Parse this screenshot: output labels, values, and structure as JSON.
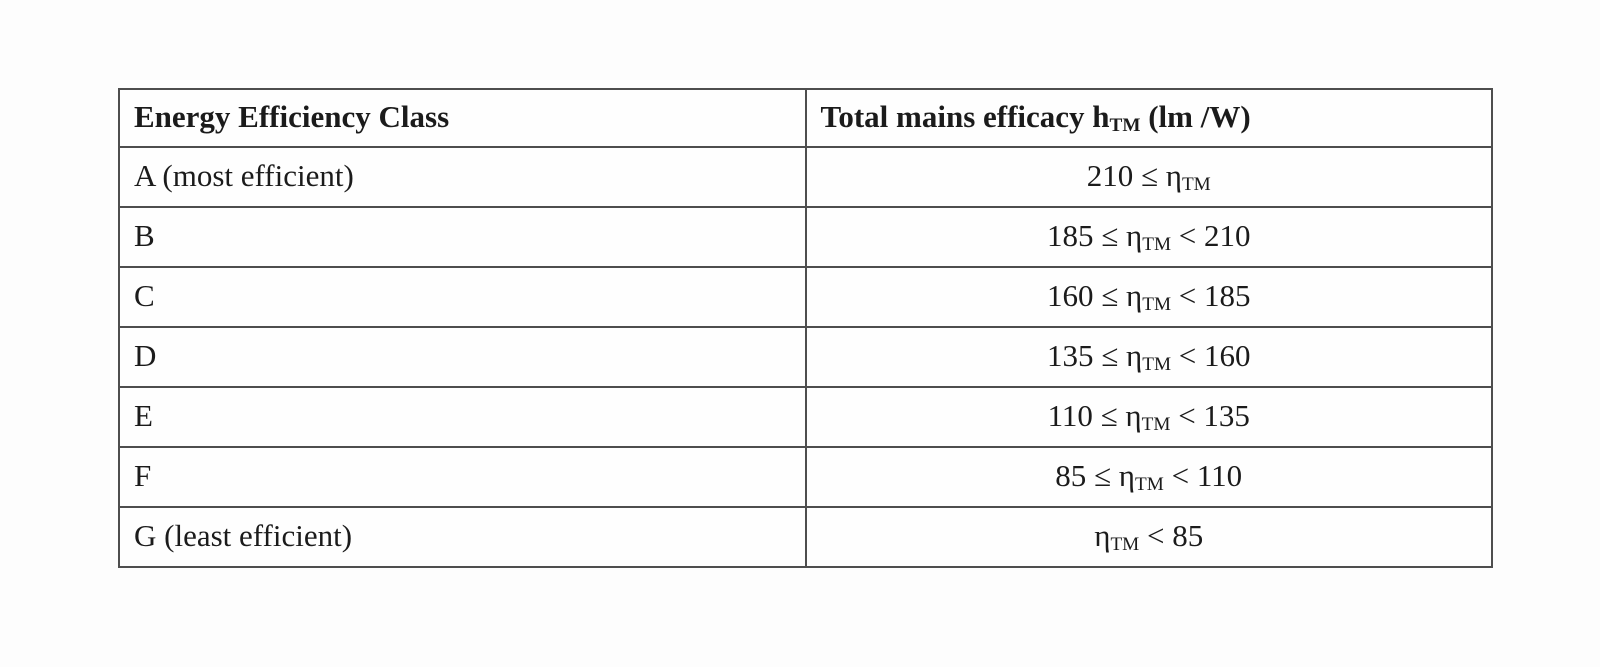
{
  "page": {
    "colors": {
      "background": "#fdfdfd",
      "table_background": "#fefefe",
      "border": "#4e4e4e",
      "text": "#1b1b1b"
    }
  },
  "table": {
    "header": {
      "col1": "Energy Efficiency Class",
      "col2_pre": "Total mains efficacy h",
      "col2_sub": "TM",
      "col2_post": " (lm /W)"
    },
    "rows": [
      {
        "label": "A (most efficient)",
        "pre": "210 ≤ η",
        "sub": "TM",
        "post": ""
      },
      {
        "label": "B",
        "pre": "185 ≤ η",
        "sub": "TM",
        "post": " < 210"
      },
      {
        "label": "C",
        "pre": "160 ≤ η",
        "sub": "TM",
        "post": " < 185"
      },
      {
        "label": "D",
        "pre": "135 ≤ η",
        "sub": "TM",
        "post": " < 160"
      },
      {
        "label": "E",
        "pre": "110 ≤ η",
        "sub": "TM",
        "post": " < 135"
      },
      {
        "label": "F",
        "pre": "85 ≤ η",
        "sub": "TM",
        "post": " < 110"
      },
      {
        "label": "G (least efficient)",
        "pre": "η",
        "sub": "TM",
        "post": " < 85"
      }
    ]
  }
}
